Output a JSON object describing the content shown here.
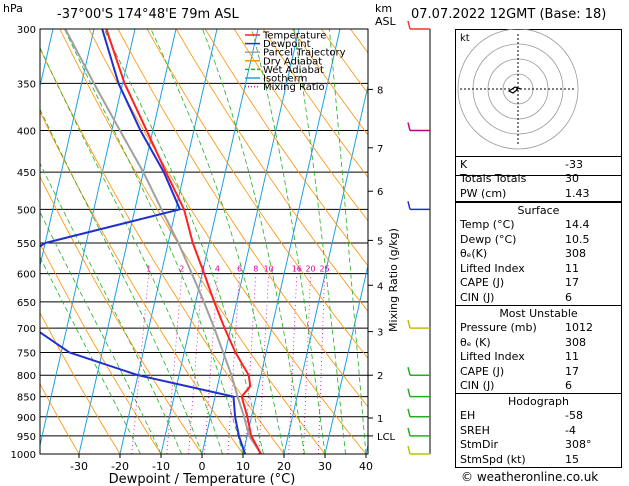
{
  "header": {
    "location": "-37°00'S 174°48'E 79m ASL",
    "datetime": "07.07.2022 12GMT (Base: 18)",
    "hpa_label": "hPa",
    "km_label": "km",
    "asl_label": "ASL",
    "credit": "© weatheronline.co.uk"
  },
  "chart_data": {
    "type": "skew-t",
    "xlabel": "Dewpoint / Temperature (°C)",
    "ylabel_right": "Mixing Ratio (g/kg)",
    "x_ticks": [
      -30,
      -20,
      -10,
      0,
      10,
      20,
      30,
      40
    ],
    "pressure_levels": [
      300,
      350,
      400,
      450,
      500,
      550,
      600,
      650,
      700,
      750,
      800,
      850,
      900,
      950,
      1000
    ],
    "km_ticks": [
      {
        "label": "8",
        "p": 356
      },
      {
        "label": "7",
        "p": 420
      },
      {
        "label": "6",
        "p": 475
      },
      {
        "label": "5",
        "p": 546
      },
      {
        "label": "4",
        "p": 620
      },
      {
        "label": "3",
        "p": 707
      },
      {
        "label": "2",
        "p": 800
      },
      {
        "label": "1",
        "p": 903
      },
      {
        "label": "LCL",
        "p": 950
      }
    ],
    "mixing_ratio_labels": [
      "1",
      "2",
      "3",
      "4",
      "6",
      "8",
      "10",
      "16",
      "20",
      "25"
    ],
    "legend": [
      "Temperature",
      "Dewpoint",
      "Parcel Trajectory",
      "Dry Adiabat",
      "Wet Adiabat",
      "Isotherm",
      "Mixing Ratio"
    ],
    "temperature": [
      {
        "p": 1000,
        "t": 14.4
      },
      {
        "p": 950,
        "t": 11.0
      },
      {
        "p": 900,
        "t": 9.0
      },
      {
        "p": 850,
        "t": 6.5
      },
      {
        "p": 825,
        "t": 8.0
      },
      {
        "p": 800,
        "t": 7.0
      },
      {
        "p": 750,
        "t": 2.5
      },
      {
        "p": 700,
        "t": -1.5
      },
      {
        "p": 650,
        "t": -5.5
      },
      {
        "p": 600,
        "t": -9.5
      },
      {
        "p": 550,
        "t": -14.0
      },
      {
        "p": 500,
        "t": -18.0
      },
      {
        "p": 450,
        "t": -24.5
      },
      {
        "p": 400,
        "t": -31.5
      },
      {
        "p": 350,
        "t": -39.5
      },
      {
        "p": 300,
        "t": -47.0
      }
    ],
    "dewpoint": [
      {
        "p": 1000,
        "t": 10.5
      },
      {
        "p": 950,
        "t": 8.0
      },
      {
        "p": 900,
        "t": 6.0
      },
      {
        "p": 850,
        "t": 4.5
      },
      {
        "p": 800,
        "t": -20.0
      },
      {
        "p": 750,
        "t": -38.0
      },
      {
        "p": 700,
        "t": -48.0
      },
      {
        "p": 600,
        "t": -60.0
      },
      {
        "p": 550,
        "t": -50.0
      },
      {
        "p": 500,
        "t": -19.0
      },
      {
        "p": 450,
        "t": -25.0
      },
      {
        "p": 400,
        "t": -33.0
      },
      {
        "p": 350,
        "t": -41.0
      },
      {
        "p": 300,
        "t": -48.0
      }
    ],
    "parcel": [
      {
        "p": 1000,
        "t": 14.4
      },
      {
        "p": 950,
        "t": 10.5
      },
      {
        "p": 900,
        "t": 8.2
      },
      {
        "p": 850,
        "t": 5.5
      },
      {
        "p": 800,
        "t": 2.8
      },
      {
        "p": 750,
        "t": -0.5
      },
      {
        "p": 700,
        "t": -4.0
      },
      {
        "p": 650,
        "t": -8.0
      },
      {
        "p": 600,
        "t": -12.5
      },
      {
        "p": 550,
        "t": -17.5
      },
      {
        "p": 500,
        "t": -23.5
      },
      {
        "p": 450,
        "t": -30.0
      },
      {
        "p": 400,
        "t": -38.0
      },
      {
        "p": 350,
        "t": -47.0
      },
      {
        "p": 300,
        "t": -57.0
      }
    ],
    "colors": {
      "temperature": "#ff2020",
      "dewpoint": "#2030d0",
      "parcel": "#a0a0a0",
      "dry_adiabat": "#ff9000",
      "wet_adiabat": "#20b020",
      "isotherm": "#20a0e0",
      "mixing_ratio": "#e000a0"
    }
  },
  "hodograph": {
    "label": "kt"
  },
  "indices": {
    "top": [
      {
        "label": "K",
        "value": "-33"
      },
      {
        "label": "Totals Totals",
        "value": "30"
      },
      {
        "label": "PW (cm)",
        "value": "1.43"
      }
    ],
    "surface": {
      "title": "Surface",
      "rows": [
        {
          "label": "Temp (°C)",
          "value": "14.4"
        },
        {
          "label": "Dewp (°C)",
          "value": "10.5"
        },
        {
          "label": "θₑ(K)",
          "value": "308"
        },
        {
          "label": "Lifted Index",
          "value": "11"
        },
        {
          "label": "CAPE (J)",
          "value": "17"
        },
        {
          "label": "CIN (J)",
          "value": "6"
        }
      ]
    },
    "unstable": {
      "title": "Most Unstable",
      "rows": [
        {
          "label": "Pressure (mb)",
          "value": "1012"
        },
        {
          "label": "θₑ (K)",
          "value": "308"
        },
        {
          "label": "Lifted Index",
          "value": "11"
        },
        {
          "label": "CAPE (J)",
          "value": "17"
        },
        {
          "label": "CIN (J)",
          "value": "6"
        }
      ]
    },
    "hodo": {
      "title": "Hodograph",
      "rows": [
        {
          "label": "EH",
          "value": "-58"
        },
        {
          "label": "SREH",
          "value": "-4"
        },
        {
          "label": "StmDir",
          "value": "308°"
        },
        {
          "label": "StmSpd (kt)",
          "value": "15"
        }
      ]
    }
  }
}
